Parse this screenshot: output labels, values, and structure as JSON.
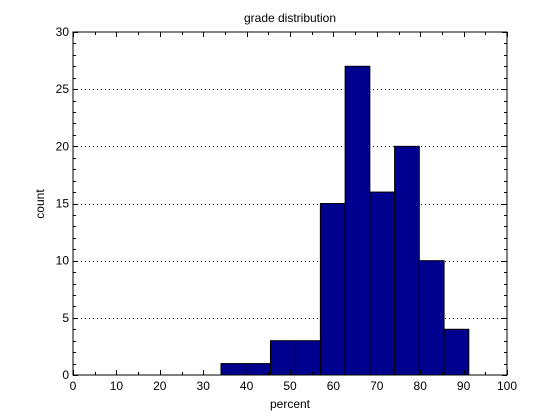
{
  "chart_data": {
    "type": "bar",
    "title": "grade distribution",
    "xlabel": "percent",
    "ylabel": "count",
    "xlim": [
      0,
      100
    ],
    "ylim": [
      0,
      30
    ],
    "xticks": [
      0,
      10,
      20,
      30,
      40,
      50,
      60,
      70,
      80,
      90,
      100
    ],
    "yticks": [
      0,
      5,
      10,
      15,
      20,
      25,
      30
    ],
    "grid": "horizontal dotted",
    "bar_color": "#00008F",
    "bins": [
      {
        "start": 34.1,
        "end": 39.8,
        "count": 1
      },
      {
        "start": 39.8,
        "end": 45.5,
        "count": 1
      },
      {
        "start": 45.5,
        "end": 51.3,
        "count": 3
      },
      {
        "start": 51.3,
        "end": 57.0,
        "count": 3
      },
      {
        "start": 57.0,
        "end": 62.7,
        "count": 15
      },
      {
        "start": 62.7,
        "end": 68.4,
        "count": 27
      },
      {
        "start": 68.4,
        "end": 74.1,
        "count": 16
      },
      {
        "start": 74.1,
        "end": 79.8,
        "count": 20
      },
      {
        "start": 79.8,
        "end": 85.5,
        "count": 10
      },
      {
        "start": 85.5,
        "end": 91.2,
        "count": 4
      }
    ]
  }
}
